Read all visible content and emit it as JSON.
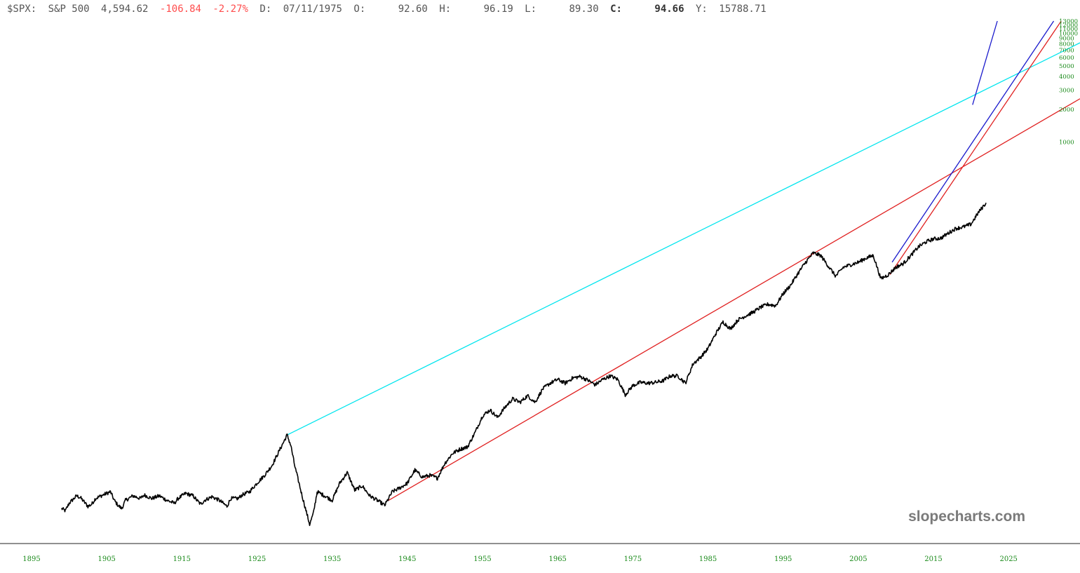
{
  "header": {
    "symbol": "$SPX:",
    "name": "S&P 500",
    "last": "4,594.62",
    "change": "-106.84",
    "change_pct": "-2.27%",
    "d_label": "D:",
    "date": "07/11/1975",
    "o_label": "O:",
    "open": "92.60",
    "h_label": "H:",
    "high": "96.19",
    "l_label": "L:",
    "low": "89.30",
    "c_label": "C:",
    "close": "94.66",
    "y_label": "Y:",
    "y_value": "15788.71"
  },
  "watermark": "slopecharts.com",
  "colors": {
    "price": "#000000",
    "upper_trendline": "#00e5ee",
    "lower_trendline": "#e02020",
    "steep_trendline": "#1a1acc",
    "tick_labels": "#1a8a1a",
    "negative": "#ff4d4d"
  },
  "chart_data": {
    "type": "line",
    "title": "",
    "xlabel": "",
    "ylabel": "",
    "y_scale": "log",
    "grid": false,
    "x_ticks": [
      "1895",
      "1905",
      "1915",
      "1925",
      "1935",
      "1945",
      "1955",
      "1965",
      "1975",
      "1985",
      "1995",
      "2005",
      "2015",
      "2025"
    ],
    "y_ticks": [
      "1000",
      "2000",
      "3000",
      "4000",
      "5000",
      "6000",
      "7000",
      "8000",
      "9000",
      "10000",
      "11000",
      "12000",
      "13000"
    ],
    "xlim": [
      1890.8,
      2034.5
    ],
    "ylim": [
      0.25,
      13000
    ],
    "series": [
      {
        "name": "",
        "color": "#000000",
        "x": [
          1899.0,
          1899.5,
          1900.0,
          1901.0,
          1901.5,
          1902.5,
          1903.0,
          1903.5,
          1904.5,
          1905.5,
          1906.0,
          1906.5,
          1907.0,
          1907.5,
          1908.5,
          1909.5,
          1910.0,
          1911.0,
          1912.0,
          1913.0,
          1914.0,
          1914.5,
          1915.5,
          1916.5,
          1917.0,
          1917.5,
          1918.0,
          1919.0,
          1920.0,
          1921.0,
          1921.5,
          1922.5,
          1923.0,
          1924.0,
          1925.0,
          1926.0,
          1927.0,
          1928.0,
          1929.0,
          1929.5,
          1930.0,
          1931.0,
          1932.0,
          1932.5,
          1933.0,
          1934.0,
          1935.0,
          1936.0,
          1937.0,
          1938.0,
          1939.0,
          1940.0,
          1941.0,
          1942.0,
          1942.5,
          1943.0,
          1944.0,
          1945.0,
          1946.0,
          1947.0,
          1948.0,
          1949.0,
          1950.0,
          1951.0,
          1952.0,
          1953.0,
          1954.0,
          1955.0,
          1956.0,
          1957.0,
          1958.0,
          1959.0,
          1960.0,
          1961.0,
          1962.0,
          1963.0,
          1964.0,
          1965.0,
          1966.0,
          1967.0,
          1968.0,
          1969.0,
          1970.0,
          1971.0,
          1972.0,
          1973.0,
          1974.0,
          1975.0,
          1976.0,
          1977.0,
          1978.0,
          1979.0,
          1980.0,
          1981.0,
          1982.0,
          1983.0,
          1984.0,
          1985.0,
          1986.0,
          1987.0,
          1988.0,
          1989.0,
          1990.0,
          1991.0,
          1992.0,
          1993.0,
          1994.0,
          1995.0,
          1996.0,
          1997.0,
          1998.0,
          1999.0,
          2000.0,
          2001.0,
          2002.0,
          2003.0,
          2004.0,
          2005.0,
          2006.0,
          2007.0,
          2008.0,
          2009.0,
          2010.0,
          2011.0,
          2012.0,
          2013.0,
          2014.0,
          2015.0,
          2016.0,
          2017.0,
          2018.0,
          2019.0,
          2020.0,
          2021.0,
          2022.0
        ],
        "y": [
          0.42,
          0.4,
          0.47,
          0.55,
          0.53,
          0.44,
          0.46,
          0.52,
          0.56,
          0.6,
          0.5,
          0.45,
          0.42,
          0.5,
          0.55,
          0.52,
          0.56,
          0.52,
          0.55,
          0.5,
          0.47,
          0.52,
          0.58,
          0.55,
          0.5,
          0.46,
          0.5,
          0.54,
          0.5,
          0.44,
          0.52,
          0.52,
          0.56,
          0.6,
          0.72,
          0.85,
          1.05,
          1.45,
          2.0,
          1.6,
          1.05,
          0.55,
          0.3,
          0.38,
          0.6,
          0.55,
          0.5,
          0.72,
          0.9,
          0.62,
          0.68,
          0.55,
          0.5,
          0.45,
          0.52,
          0.6,
          0.65,
          0.72,
          0.95,
          0.82,
          0.85,
          0.8,
          1.1,
          1.35,
          1.48,
          1.55,
          2.1,
          3.0,
          3.4,
          2.9,
          3.6,
          4.3,
          4.0,
          4.6,
          4.0,
          5.3,
          6.0,
          6.5,
          6.0,
          6.7,
          6.9,
          6.4,
          5.8,
          6.5,
          7.0,
          6.5,
          4.7,
          5.7,
          6.1,
          6.0,
          6.1,
          6.3,
          7.0,
          7.0,
          6.0,
          9.0,
          10.4,
          12.5,
          17.0,
          22.0,
          19.0,
          23.0,
          25.0,
          27.0,
          30.0,
          32.0,
          31.0,
          40.0,
          48.0,
          62.0,
          78.0,
          95.0,
          90.0,
          72.0,
          58.0,
          70.0,
          74.0,
          78.0,
          85.0,
          90.0,
          55.0,
          60.0,
          70.0,
          76.0,
          90.0,
          108.0,
          120.0,
          128.0,
          130.0,
          145.0,
          160.0,
          165.0,
          175.0,
          225.0,
          275.0
        ]
      }
    ],
    "trendlines": [
      {
        "name": "",
        "color": "#00e5ee",
        "from": [
          1929.0,
          2.0
        ],
        "to": [
          2034.5,
          8200
        ]
      },
      {
        "name": "",
        "color": "#e02020",
        "from": [
          1942.5,
          0.5
        ],
        "to": [
          2034.5,
          2500
        ]
      },
      {
        "name": "",
        "color": "#e02020",
        "from": [
          2009.2,
          60.0
        ],
        "to": [
          2032.0,
          13000
        ]
      },
      {
        "name": "",
        "color": "#1a1acc",
        "from": [
          2009.5,
          78.0
        ],
        "to": [
          2031.0,
          13000
        ]
      },
      {
        "name": "",
        "color": "#1a1acc",
        "from": [
          2020.2,
          2200
        ],
        "to": [
          2023.5,
          13000
        ]
      }
    ]
  }
}
